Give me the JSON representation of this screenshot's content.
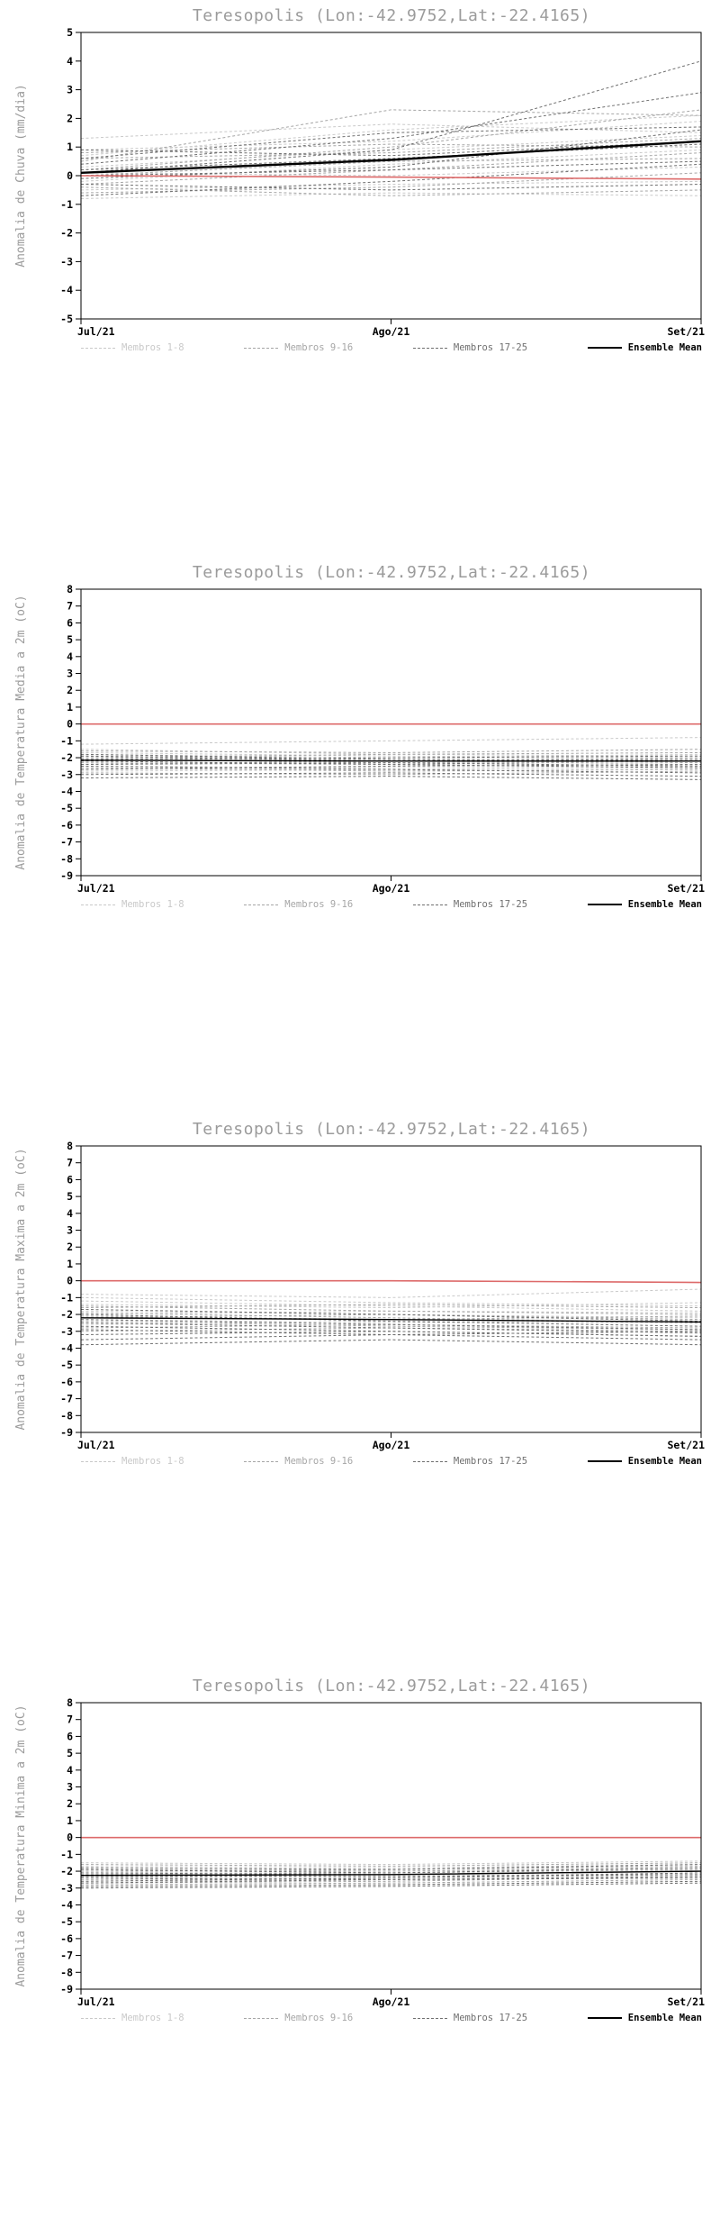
{
  "chart_data": [
    {
      "type": "line",
      "title": "Teresopolis (Lon:-42.9752,Lat:-22.4165)",
      "ylabel": "Anomalia de Chuva (mm/dia)",
      "x": [
        "Jul/21",
        "Ago/21",
        "Set/21"
      ],
      "ylim": [
        -5,
        5
      ],
      "ytick_step": 1,
      "legend_position": "bottom",
      "member_groups": [
        {
          "label": "Membros 1-8",
          "color": "#c9c9c9",
          "style": "dashed",
          "series": [
            [
              0.7,
              1.6,
              2.1
            ],
            [
              1.3,
              1.8,
              1.5
            ],
            [
              0.3,
              0.9,
              1.4
            ],
            [
              -0.2,
              0.4,
              0.9
            ],
            [
              0.1,
              0.0,
              0.3
            ],
            [
              -0.5,
              -0.3,
              -0.2
            ],
            [
              0.9,
              1.2,
              1.9
            ],
            [
              -0.8,
              -0.6,
              -0.7
            ]
          ]
        },
        {
          "label": "Membros 9-16",
          "color": "#a6a6a6",
          "style": "dashed",
          "series": [
            [
              0.5,
              2.3,
              2.1
            ],
            [
              0.2,
              1.0,
              2.3
            ],
            [
              -0.3,
              0.2,
              0.8
            ],
            [
              0.6,
              0.8,
              1.3
            ],
            [
              -0.6,
              -0.4,
              0.1
            ],
            [
              0.0,
              0.5,
              0.6
            ],
            [
              0.8,
              1.1,
              1.0
            ],
            [
              -0.4,
              -0.7,
              -0.5
            ]
          ]
        },
        {
          "label": "Membros 17-25",
          "color": "#6f6f6f",
          "style": "dashed",
          "series": [
            [
              0.1,
              0.9,
              4.0
            ],
            [
              0.4,
              1.3,
              2.9
            ],
            [
              -0.1,
              0.3,
              1.6
            ],
            [
              0.6,
              1.5,
              1.7
            ],
            [
              -0.7,
              -0.2,
              0.4
            ],
            [
              0.2,
              0.6,
              1.1
            ],
            [
              -0.3,
              -0.5,
              -0.3
            ],
            [
              0.9,
              0.7,
              1.2
            ],
            [
              0.0,
              0.2,
              0.5
            ]
          ]
        }
      ],
      "ensemble_mean": {
        "label": "Ensemble Mean",
        "color": "#000000",
        "width": 2.4,
        "values": [
          0.1,
          0.55,
          1.2
        ]
      },
      "reference_line": {
        "color": "#dd6a6a",
        "values": [
          0.0,
          -0.05,
          -0.12
        ]
      }
    },
    {
      "type": "line",
      "title": "Teresopolis (Lon:-42.9752,Lat:-22.4165)",
      "ylabel": "Anomalia de Temperatura Media a 2m (oC)",
      "x": [
        "Jul/21",
        "Ago/21",
        "Set/21"
      ],
      "ylim": [
        -9,
        8
      ],
      "ytick_step": 1,
      "legend_position": "bottom",
      "member_groups": [
        {
          "label": "Membros 1-8",
          "color": "#c9c9c9",
          "style": "dashed",
          "series": [
            [
              -1.5,
              -1.8,
              -1.9
            ],
            [
              -1.8,
              -2.0,
              -1.8
            ],
            [
              -2.0,
              -2.2,
              -2.4
            ],
            [
              -2.2,
              -2.0,
              -2.1
            ],
            [
              -1.2,
              -1.0,
              -0.8
            ],
            [
              -2.5,
              -2.6,
              -2.5
            ],
            [
              -1.7,
              -1.9,
              -2.0
            ],
            [
              -2.8,
              -2.7,
              -2.6
            ]
          ]
        },
        {
          "label": "Membros 9-16",
          "color": "#a6a6a6",
          "style": "dashed",
          "series": [
            [
              -1.6,
              -1.7,
              -1.5
            ],
            [
              -2.1,
              -2.3,
              -2.2
            ],
            [
              -2.4,
              -2.2,
              -2.0
            ],
            [
              -1.9,
              -2.1,
              -2.3
            ],
            [
              -2.6,
              -2.8,
              -2.7
            ],
            [
              -2.3,
              -2.4,
              -2.2
            ],
            [
              -2.0,
              -1.8,
              -1.7
            ],
            [
              -2.9,
              -3.0,
              -2.8
            ]
          ]
        },
        {
          "label": "Membros 17-25",
          "color": "#6f6f6f",
          "style": "dashed",
          "series": [
            [
              -1.8,
              -2.1,
              -2.2
            ],
            [
              -2.2,
              -2.4,
              -2.6
            ],
            [
              -2.7,
              -2.5,
              -2.4
            ],
            [
              -3.0,
              -2.9,
              -3.1
            ],
            [
              -2.1,
              -2.0,
              -1.9
            ],
            [
              -2.5,
              -2.7,
              -2.9
            ],
            [
              -3.2,
              -3.1,
              -3.3
            ],
            [
              -1.9,
              -2.2,
              -2.1
            ],
            [
              -2.4,
              -2.3,
              -2.5
            ]
          ]
        }
      ],
      "ensemble_mean": {
        "label": "Ensemble Mean",
        "color": "#000000",
        "width": 1.4,
        "values": [
          -2.15,
          -2.2,
          -2.2
        ]
      },
      "reference_line": {
        "color": "#dd6a6a",
        "values": [
          0.0,
          0.0,
          0.0
        ]
      }
    },
    {
      "type": "line",
      "title": "Teresopolis (Lon:-42.9752,Lat:-22.4165)",
      "ylabel": "Anomalia de Temperatura Maxima a 2m (oC)",
      "x": [
        "Jul/21",
        "Ago/21",
        "Set/21"
      ],
      "ylim": [
        -9,
        8
      ],
      "ytick_step": 1,
      "legend_position": "bottom",
      "member_groups": [
        {
          "label": "Membros 1-8",
          "color": "#c9c9c9",
          "style": "dashed",
          "series": [
            [
              -1.0,
              -1.3,
              -1.5
            ],
            [
              -1.4,
              -1.6,
              -1.3
            ],
            [
              -1.8,
              -2.0,
              -2.2
            ],
            [
              -0.8,
              -1.0,
              -0.5
            ],
            [
              -2.0,
              -1.8,
              -1.9
            ],
            [
              -2.3,
              -2.5,
              -2.4
            ],
            [
              -1.2,
              -1.5,
              -1.8
            ],
            [
              -2.6,
              -2.4,
              -2.5
            ]
          ]
        },
        {
          "label": "Membros 9-16",
          "color": "#a6a6a6",
          "style": "dashed",
          "series": [
            [
              -1.5,
              -1.8,
              -2.0
            ],
            [
              -2.2,
              -2.0,
              -2.3
            ],
            [
              -1.9,
              -2.2,
              -2.5
            ],
            [
              -2.8,
              -2.6,
              -2.8
            ],
            [
              -1.6,
              -1.4,
              -1.6
            ],
            [
              -2.4,
              -2.7,
              -2.9
            ],
            [
              -2.1,
              -2.3,
              -2.1
            ],
            [
              -3.0,
              -2.8,
              -3.0
            ]
          ]
        },
        {
          "label": "Membros 17-25",
          "color": "#6f6f6f",
          "style": "dashed",
          "series": [
            [
              -1.7,
              -2.0,
              -2.4
            ],
            [
              -2.5,
              -2.8,
              -3.1
            ],
            [
              -3.2,
              -3.0,
              -3.3
            ],
            [
              -2.0,
              -2.4,
              -2.7
            ],
            [
              -3.5,
              -3.2,
              -3.5
            ],
            [
              -2.7,
              -3.0,
              -3.3
            ],
            [
              -3.8,
              -3.5,
              -3.8
            ],
            [
              -2.3,
              -2.6,
              -2.9
            ],
            [
              -2.9,
              -3.2,
              -3.0
            ]
          ]
        }
      ],
      "ensemble_mean": {
        "label": "Ensemble Mean",
        "color": "#000000",
        "width": 1.4,
        "values": [
          -2.2,
          -2.3,
          -2.45
        ]
      },
      "reference_line": {
        "color": "#dd6a6a",
        "values": [
          0.0,
          0.0,
          -0.1
        ]
      }
    },
    {
      "type": "line",
      "title": "Teresopolis (Lon:-42.9752,Lat:-22.4165)",
      "ylabel": "Anomalia de Temperatura Minima a 2m (oC)",
      "x": [
        "Jul/21",
        "Ago/21",
        "Set/21"
      ],
      "ylim": [
        -9,
        8
      ],
      "ytick_step": 1,
      "legend_position": "bottom",
      "member_groups": [
        {
          "label": "Membros 1-8",
          "color": "#c9c9c9",
          "style": "dashed",
          "series": [
            [
              -1.8,
              -1.9,
              -1.7
            ],
            [
              -2.1,
              -2.0,
              -1.8
            ],
            [
              -1.5,
              -1.6,
              -1.4
            ],
            [
              -2.4,
              -2.3,
              -2.1
            ],
            [
              -2.0,
              -2.1,
              -1.9
            ],
            [
              -2.6,
              -2.5,
              -2.4
            ],
            [
              -1.7,
              -1.8,
              -1.6
            ],
            [
              -2.2,
              -2.2,
              -2.0
            ]
          ]
        },
        {
          "label": "Membros 9-16",
          "color": "#a6a6a6",
          "style": "dashed",
          "series": [
            [
              -1.9,
              -2.0,
              -1.8
            ],
            [
              -2.3,
              -2.2,
              -2.0
            ],
            [
              -2.7,
              -2.6,
              -2.3
            ],
            [
              -1.6,
              -1.7,
              -1.5
            ],
            [
              -2.5,
              -2.4,
              -2.2
            ],
            [
              -2.0,
              -1.9,
              -1.7
            ],
            [
              -2.8,
              -2.7,
              -2.5
            ],
            [
              -2.2,
              -2.1,
              -1.9
            ]
          ]
        },
        {
          "label": "Membros 17-25",
          "color": "#6f6f6f",
          "style": "dashed",
          "series": [
            [
              -2.1,
              -2.2,
              -2.0
            ],
            [
              -2.9,
              -2.8,
              -2.6
            ],
            [
              -1.8,
              -1.9,
              -1.6
            ],
            [
              -2.4,
              -2.5,
              -2.3
            ],
            [
              -3.0,
              -2.9,
              -2.7
            ],
            [
              -2.6,
              -2.4,
              -2.1
            ],
            [
              -2.3,
              -2.3,
              -2.2
            ],
            [
              -1.9,
              -2.1,
              -1.8
            ],
            [
              -2.7,
              -2.5,
              -2.4
            ]
          ]
        }
      ],
      "ensemble_mean": {
        "label": "Ensemble Mean",
        "color": "#000000",
        "width": 1.4,
        "values": [
          -2.25,
          -2.2,
          -2.0
        ]
      },
      "reference_line": {
        "color": "#dd6a6a",
        "values": [
          0.0,
          0.0,
          0.0
        ]
      }
    }
  ]
}
